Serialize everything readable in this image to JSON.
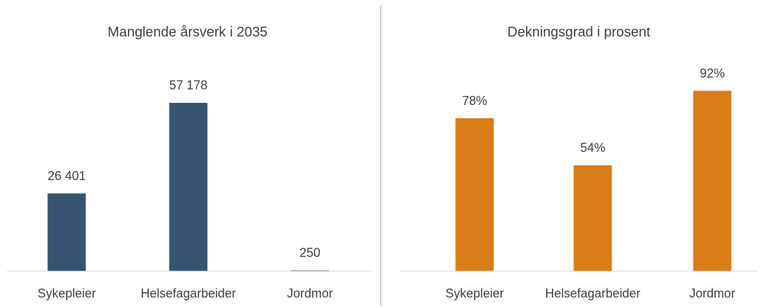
{
  "chart_data": [
    {
      "type": "bar",
      "title": "Manglende årsverk i 2035",
      "categories": [
        "Sykepleier",
        "Helsefagarbeider",
        "Jordmor"
      ],
      "values": [
        26401,
        57178,
        250
      ],
      "value_labels": [
        "26 401",
        "57 178",
        "250"
      ],
      "color": "#375472",
      "ylim": [
        0,
        60000
      ]
    },
    {
      "type": "bar",
      "title": "Dekningsgrad i prosent",
      "categories": [
        "Sykepleier",
        "Helsefagarbeider",
        "Jordmor"
      ],
      "values": [
        78,
        54,
        92
      ],
      "value_labels": [
        "78%",
        "54%",
        "92%"
      ],
      "color": "#d97d17",
      "ylim": [
        0,
        100
      ]
    }
  ]
}
